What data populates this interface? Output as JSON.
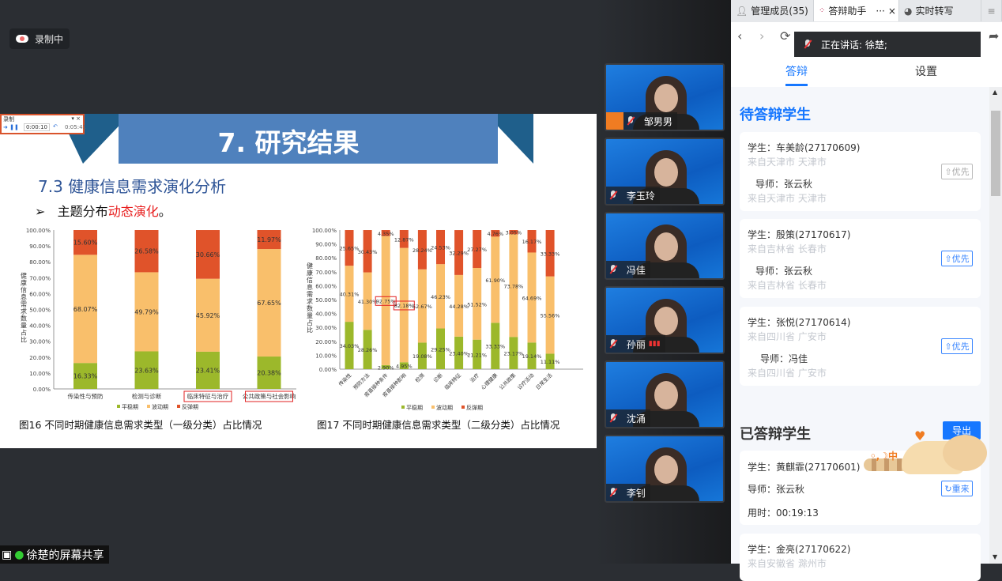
{
  "recording_status": "录制中",
  "screen_share_label": "徐楚的屏幕共享",
  "slide": {
    "title": "7. 研究结果",
    "subtitle": "7.3  健康信息需求演化分析",
    "bullet_prefix": "主题分布",
    "bullet_highlight": "动态演化",
    "bullet_suffix": "。",
    "rec_widget": {
      "label": "录制",
      "elapsed": "0:00:10",
      "total": "0:05:41"
    }
  },
  "chart_data": [
    {
      "type": "bar",
      "stacked": true,
      "title": "图16  不同时期健康信息需求类型（一级分类）占比情况",
      "ylabel": "健康信息需求数量占比",
      "ylim": [
        0,
        100
      ],
      "yticks": [
        "0.00%",
        "10.00%",
        "20.00%",
        "30.00%",
        "40.00%",
        "50.00%",
        "60.00%",
        "70.00%",
        "80.00%",
        "90.00%",
        "100.00%"
      ],
      "categories": [
        "传染性与预防",
        "检测与诊断",
        "临床特征与治疗",
        "公共政策与社会影响"
      ],
      "highlighted_categories": [
        "临床特征与治疗",
        "公共政策与社会影响"
      ],
      "legend_position": "bottom",
      "series": [
        {
          "name": "平稳期",
          "color": "#9cb82b",
          "values": [
            16.33,
            23.63,
            23.41,
            20.38
          ]
        },
        {
          "name": "波动期",
          "color": "#f9bf6b",
          "values": [
            68.07,
            49.79,
            45.92,
            67.65
          ]
        },
        {
          "name": "反弹期",
          "color": "#e0532a",
          "values": [
            15.6,
            26.58,
            30.66,
            11.97
          ]
        }
      ]
    },
    {
      "type": "bar",
      "stacked": true,
      "title": "图17  不同时期健康信息需求类型（二级分类）占比情况",
      "ylabel": "健康信息需求数量占比",
      "ylim": [
        0,
        100
      ],
      "yticks": [
        "0.00%",
        "10.00%",
        "20.00%",
        "30.00%",
        "40.00%",
        "50.00%",
        "60.00%",
        "70.00%",
        "80.00%",
        "90.00%",
        "100.00%"
      ],
      "categories": [
        "传染性",
        "预防方法",
        "疫苗接种条件",
        "疫苗接种影响",
        "检测",
        "诊断",
        "临床特征",
        "治疗",
        "心理健康",
        "公共政策",
        "诊疗活动",
        "日常生活"
      ],
      "highlighted_labels": [
        "92.75%",
        "82.18%"
      ],
      "legend_position": "bottom",
      "series": [
        {
          "name": "平稳期",
          "color": "#9cb82b",
          "values": [
            34.03,
            28.26,
            2.9,
            4.95,
            19.08,
            29.25,
            23.4,
            21.21,
            33.33,
            23.17,
            19.14,
            11.11
          ]
        },
        {
          "name": "波动期",
          "color": "#f9bf6b",
          "values": [
            40.31,
            41.3,
            92.75,
            82.18,
            52.67,
            46.23,
            44.28,
            51.52,
            61.9,
            73.78,
            64.69,
            55.56
          ]
        },
        {
          "name": "反弹期",
          "color": "#e0532a",
          "values": [
            25.65,
            30.43,
            4.35,
            12.87,
            28.24,
            24.53,
            32.29,
            27.27,
            4.76,
            3.05,
            16.17,
            33.33
          ]
        }
      ]
    }
  ],
  "participants": [
    {
      "name": "邹男男",
      "host": true
    },
    {
      "name": "李玉玲"
    },
    {
      "name": "冯佳"
    },
    {
      "name": "孙丽",
      "speaking": true
    },
    {
      "name": "沈涌"
    },
    {
      "name": "李钊"
    }
  ],
  "panel": {
    "tabs": [
      {
        "label": "管理成员(35)"
      },
      {
        "label": "答辩助手",
        "more": "···",
        "close": "×"
      },
      {
        "label": "实时转写"
      }
    ],
    "speaking": "正在讲话: 徐楚;",
    "subtabs": [
      "答辩",
      "设置"
    ],
    "pending_title": "待答辩学生",
    "pending": [
      {
        "student": "学生：车美龄(27170609)",
        "student_from": "来自天津市 天津市",
        "advisor": "导师：张云秋",
        "advisor_from": "来自天津市 天津市",
        "action": "优先",
        "disabled": true
      },
      {
        "student": "学生：殷策(27170617)",
        "student_from": "来自吉林省 长春市",
        "advisor": "导师：张云秋",
        "advisor_from": "来自吉林省 长春市",
        "action": "优先"
      },
      {
        "student": "学生：张悦(27170614)",
        "student_from": "来自四川省 广安市",
        "advisor": "导师：冯佳",
        "advisor_from": "来自四川省 广安市",
        "action": "优先"
      }
    ],
    "done_title": "已答辩学生",
    "export_label": "导出",
    "done": [
      {
        "student": "学生：黄麒霏(27170601)",
        "advisor": "导师：张云秋",
        "time": "用时：00:19:13",
        "action": "重来"
      },
      {
        "student": "学生：金亮(27170622)",
        "student_from": "来自安徽省 滁州市"
      }
    ],
    "sticker_text": "中"
  },
  "colors": {
    "accent": "#1677ff",
    "banner": "#4f81bd",
    "banner_dark": "#1f5f8b"
  }
}
